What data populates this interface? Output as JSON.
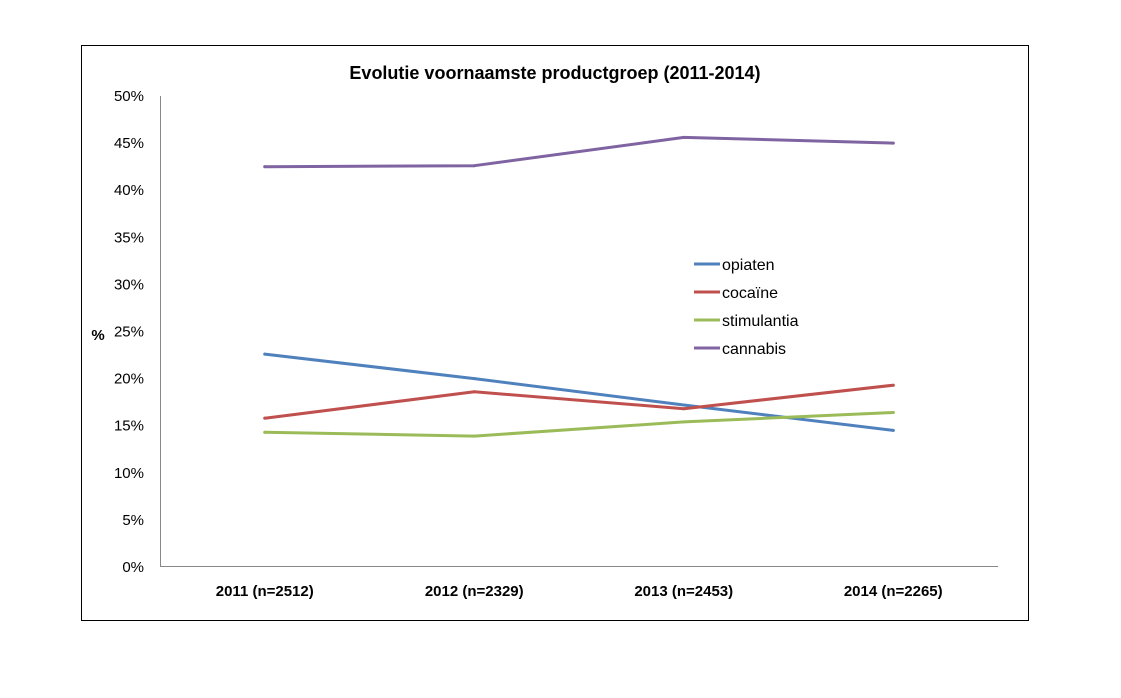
{
  "chart_data": {
    "type": "line",
    "title": "Evolutie voornaamste productgroep (2011-2014)",
    "xlabel": "",
    "ylabel": "%",
    "categories": [
      "2011 (n=2512)",
      "2012 (n=2329)",
      "2013 (n=2453)",
      "2014 (n=2265)"
    ],
    "ylim": [
      0,
      50
    ],
    "yticks": [
      "0%",
      "5%",
      "10%",
      "15%",
      "20%",
      "25%",
      "30%",
      "35%",
      "40%",
      "45%",
      "50%"
    ],
    "grid": false,
    "legend_position": "right",
    "series": [
      {
        "name": "opiaten",
        "color": "#4f81bd",
        "values": [
          22.6,
          20.0,
          17.2,
          14.5
        ]
      },
      {
        "name": "cocaïne",
        "color": "#c0504d",
        "values": [
          15.8,
          18.6,
          16.8,
          19.3
        ]
      },
      {
        "name": "stimulantia",
        "color": "#9bbb59",
        "values": [
          14.3,
          13.9,
          15.4,
          16.4
        ]
      },
      {
        "name": "cannabis",
        "color": "#8064a2",
        "values": [
          42.5,
          42.6,
          45.6,
          45.0
        ]
      }
    ]
  }
}
